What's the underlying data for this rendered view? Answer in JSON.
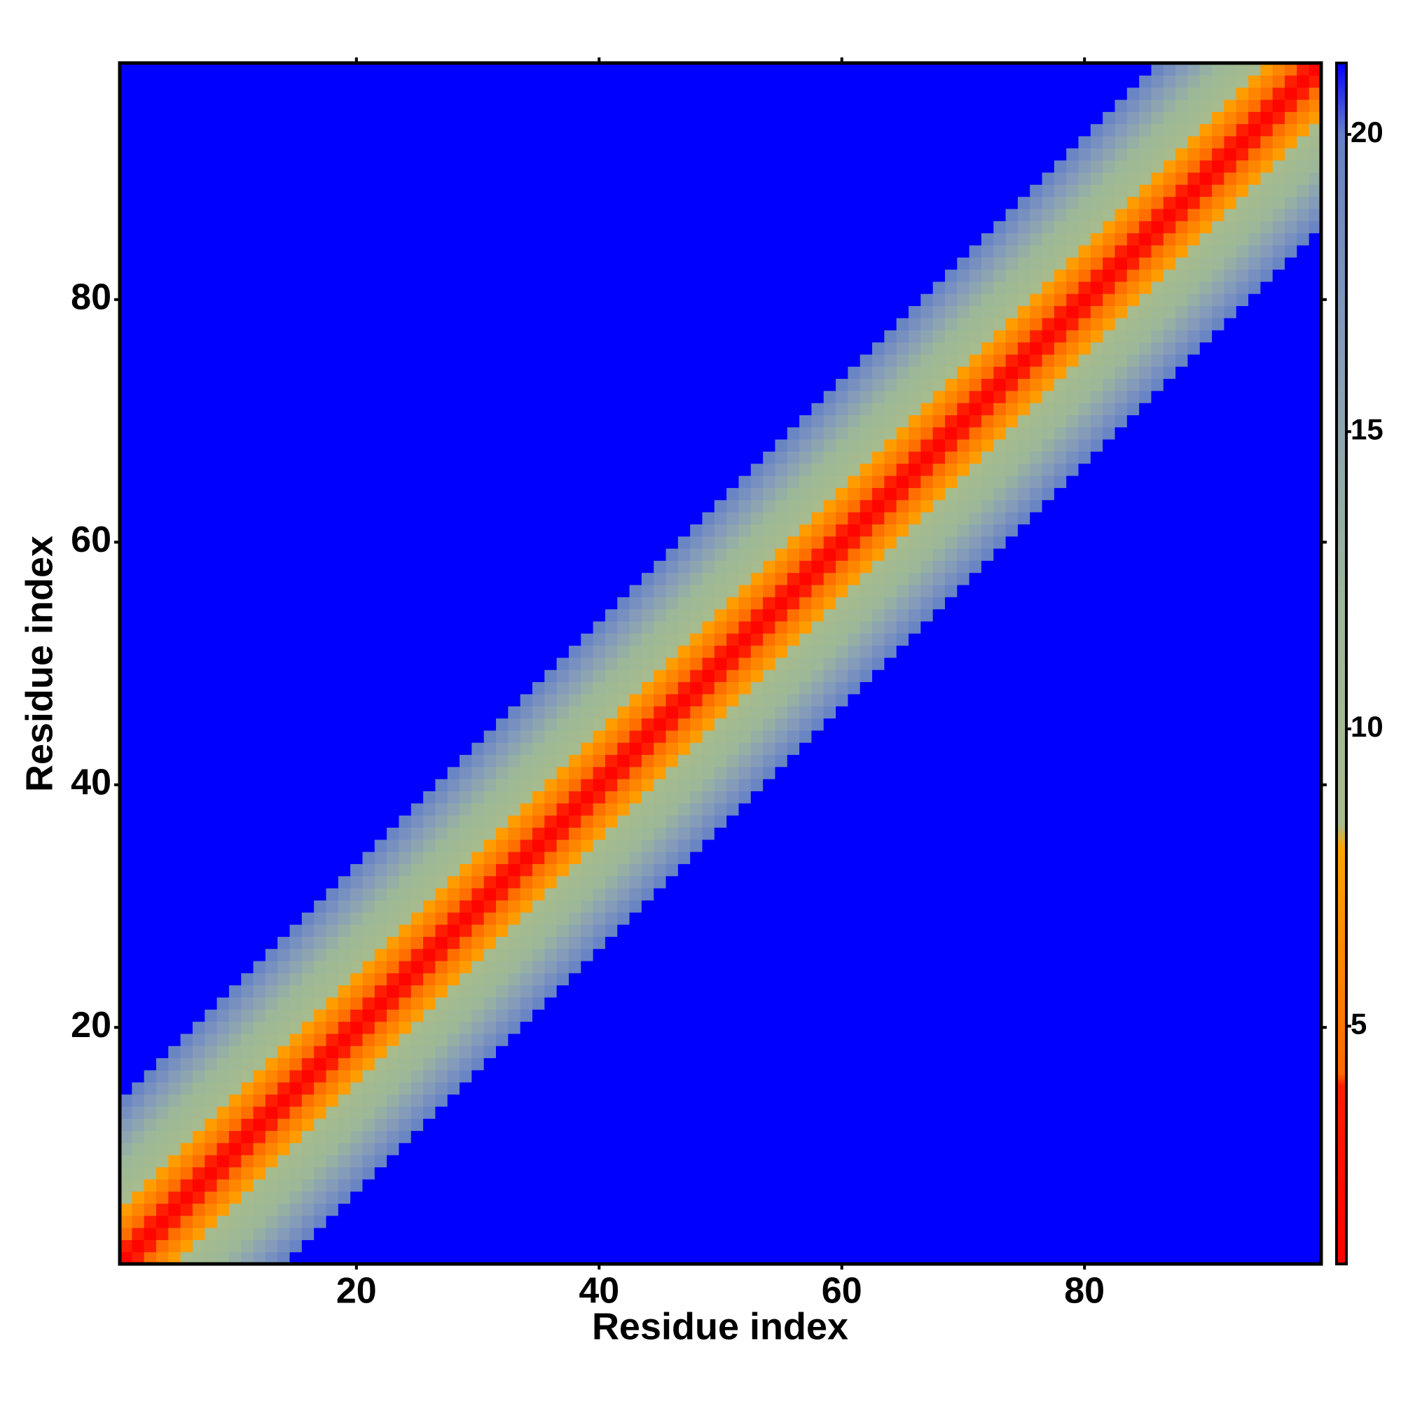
{
  "chart_data": {
    "type": "heatmap",
    "x_label": "Residue index",
    "y_label": "Residue index",
    "xlim": [
      0.5,
      99.5
    ],
    "ylim": [
      0.5,
      99.5
    ],
    "xticks": [
      20,
      40,
      60,
      80
    ],
    "yticks": [
      20,
      40,
      60,
      80
    ],
    "values": [
      1.5,
      3.8,
      4.5,
      6,
      7.5,
      9,
      10,
      11,
      12,
      13.5,
      15,
      16.5,
      18,
      19.5,
      22,
      22,
      22,
      22,
      22,
      22,
      22,
      22,
      22,
      22,
      22,
      22,
      22,
      22,
      22,
      22,
      22,
      22,
      22,
      22,
      22,
      22,
      22,
      22,
      22,
      22,
      22,
      22,
      22,
      22,
      22,
      22,
      22,
      22,
      22,
      22,
      22,
      22,
      22,
      22,
      22,
      22,
      22,
      22,
      22,
      22,
      22,
      22,
      22,
      22,
      22,
      22,
      22,
      22,
      22,
      22,
      22,
      22,
      22,
      22,
      22,
      22,
      22,
      22,
      22,
      22,
      22,
      22,
      22,
      22,
      22,
      22,
      22,
      22,
      22,
      22,
      22,
      22,
      22,
      22,
      22,
      22,
      22,
      22,
      22
    ],
    "colorbar_lim": [
      1,
      21.2
    ],
    "colorbar_ticks": [
      5,
      10,
      15,
      20
    ],
    "colormap": [
      {
        "value": 1,
        "color": "#ff0000"
      },
      {
        "value": 4,
        "color": "#ff2000"
      },
      {
        "value": 4.2,
        "color": "#ff6a00"
      },
      {
        "value": 8,
        "color": "#ffa500"
      },
      {
        "value": 8.4,
        "color": "#a8bb8c"
      },
      {
        "value": 12,
        "color": "#9cb898"
      },
      {
        "value": 16,
        "color": "#889fb8"
      },
      {
        "value": 20,
        "color": "#6681c6"
      },
      {
        "value": 21.2,
        "color": "#0000ff"
      }
    ]
  }
}
